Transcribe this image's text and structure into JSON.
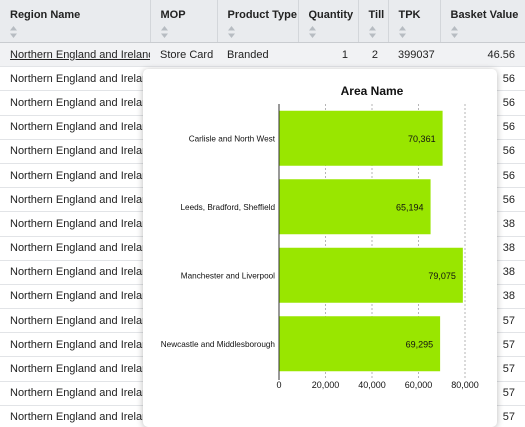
{
  "table": {
    "columns": [
      {
        "key": "region",
        "label": "Region Name"
      },
      {
        "key": "mop",
        "label": "MOP"
      },
      {
        "key": "product_type",
        "label": "Product Type"
      },
      {
        "key": "quantity",
        "label": "Quantity"
      },
      {
        "key": "till",
        "label": "Till"
      },
      {
        "key": "tpk",
        "label": "TPK"
      },
      {
        "key": "basket_value",
        "label": "Basket Value"
      }
    ],
    "rows": [
      {
        "region": "Northern England and Ireland",
        "mop": "Store Card",
        "product_type": "Branded",
        "quantity": "1",
        "till": "2",
        "tpk": "399037",
        "basket_value": "46.56"
      },
      {
        "region": "Northern England and Ireland",
        "basket_value": "56"
      },
      {
        "region": "Northern England and Ireland",
        "basket_value": "56"
      },
      {
        "region": "Northern England and Ireland",
        "basket_value": "56"
      },
      {
        "region": "Northern England and Ireland",
        "basket_value": "56"
      },
      {
        "region": "Northern England and Ireland",
        "basket_value": "56"
      },
      {
        "region": "Northern England and Ireland",
        "basket_value": "56"
      },
      {
        "region": "Northern England and Ireland",
        "basket_value": "38"
      },
      {
        "region": "Northern England and Ireland",
        "basket_value": "38"
      },
      {
        "region": "Northern England and Ireland",
        "basket_value": "38"
      },
      {
        "region": "Northern England and Ireland",
        "basket_value": "38"
      },
      {
        "region": "Northern England and Ireland",
        "basket_value": "57"
      },
      {
        "region": "Northern England and Ireland",
        "basket_value": "57"
      },
      {
        "region": "Northern England and Ireland",
        "basket_value": "57"
      },
      {
        "region": "Northern England and Ireland",
        "basket_value": "57"
      },
      {
        "region": "Northern England and Ireland",
        "basket_value": "57"
      }
    ]
  },
  "chart_data": {
    "type": "bar",
    "orientation": "horizontal",
    "title": "Area Name",
    "categories": [
      "Carlisle and North West",
      "Leeds, Bradford, Sheffield",
      "Manchester and Liverpool",
      "Newcastle and Middlesborough"
    ],
    "values": [
      70361,
      65194,
      79075,
      69295
    ],
    "value_labels": [
      "70,361",
      "65,194",
      "79,075",
      "69,295"
    ],
    "xticks": [
      0,
      20000,
      40000,
      60000,
      80000
    ],
    "xtick_labels": [
      "0",
      "20,000",
      "40,000",
      "60,000",
      "80,000"
    ],
    "xlim": [
      0,
      80000
    ],
    "grid": true,
    "bar_color": "#99e600"
  }
}
